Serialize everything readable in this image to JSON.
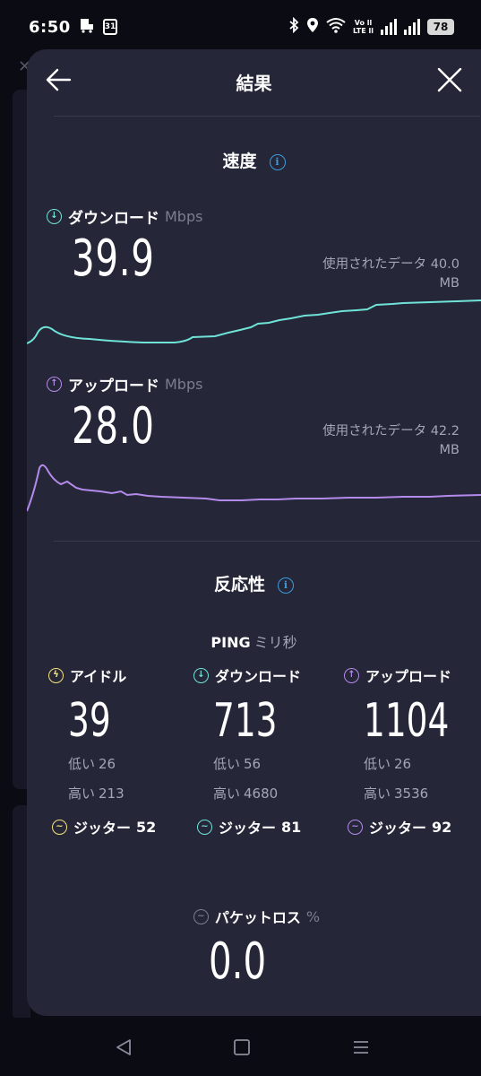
{
  "status_bar": {
    "time": "6:50",
    "calendar_badge": "31",
    "lte_line1": "Vo ll",
    "lte_line2": "LTE ll",
    "battery": "78"
  },
  "header": {
    "title": "結果"
  },
  "speed": {
    "section_title": "速度",
    "download": {
      "label": "ダウンロード",
      "unit": "Mbps",
      "value": "39.9",
      "data_used_line1": "使用されたデータ 40.0",
      "data_used_line2": "MB",
      "color": "#6fe3d8"
    },
    "upload": {
      "label": "アップロード",
      "unit": "Mbps",
      "value": "28.0",
      "data_used_line1": "使用されたデータ 42.2",
      "data_used_line2": "MB",
      "color": "#b48aeb"
    }
  },
  "responsiveness": {
    "section_title": "反応性",
    "ping_label": "PING",
    "ping_unit": "ミリ秒",
    "columns": [
      {
        "label": "アイドル",
        "icon": "idle-icon",
        "value": "39",
        "low_label": "低い",
        "low": "26",
        "high_label": "高い",
        "high": "213",
        "jitter_label": "ジッター",
        "jitter": "52",
        "color": "#f5e27a"
      },
      {
        "label": "ダウンロード",
        "icon": "download-icon",
        "value": "713",
        "low_label": "低い",
        "low": "56",
        "high_label": "高い",
        "high": "4680",
        "jitter_label": "ジッター",
        "jitter": "81",
        "color": "#6fe3d8"
      },
      {
        "label": "アップロード",
        "icon": "upload-icon",
        "value": "1104",
        "low_label": "低い",
        "low": "26",
        "high_label": "高い",
        "high": "3536",
        "jitter_label": "ジッター",
        "jitter": "92",
        "color": "#b48aeb"
      }
    ],
    "packet_loss": {
      "label": "パケットロス",
      "unit": "%",
      "value": "0.0"
    }
  },
  "nav": {
    "back": "back-triangle-icon",
    "home": "home-square-icon",
    "recents": "recents-menu-icon"
  }
}
